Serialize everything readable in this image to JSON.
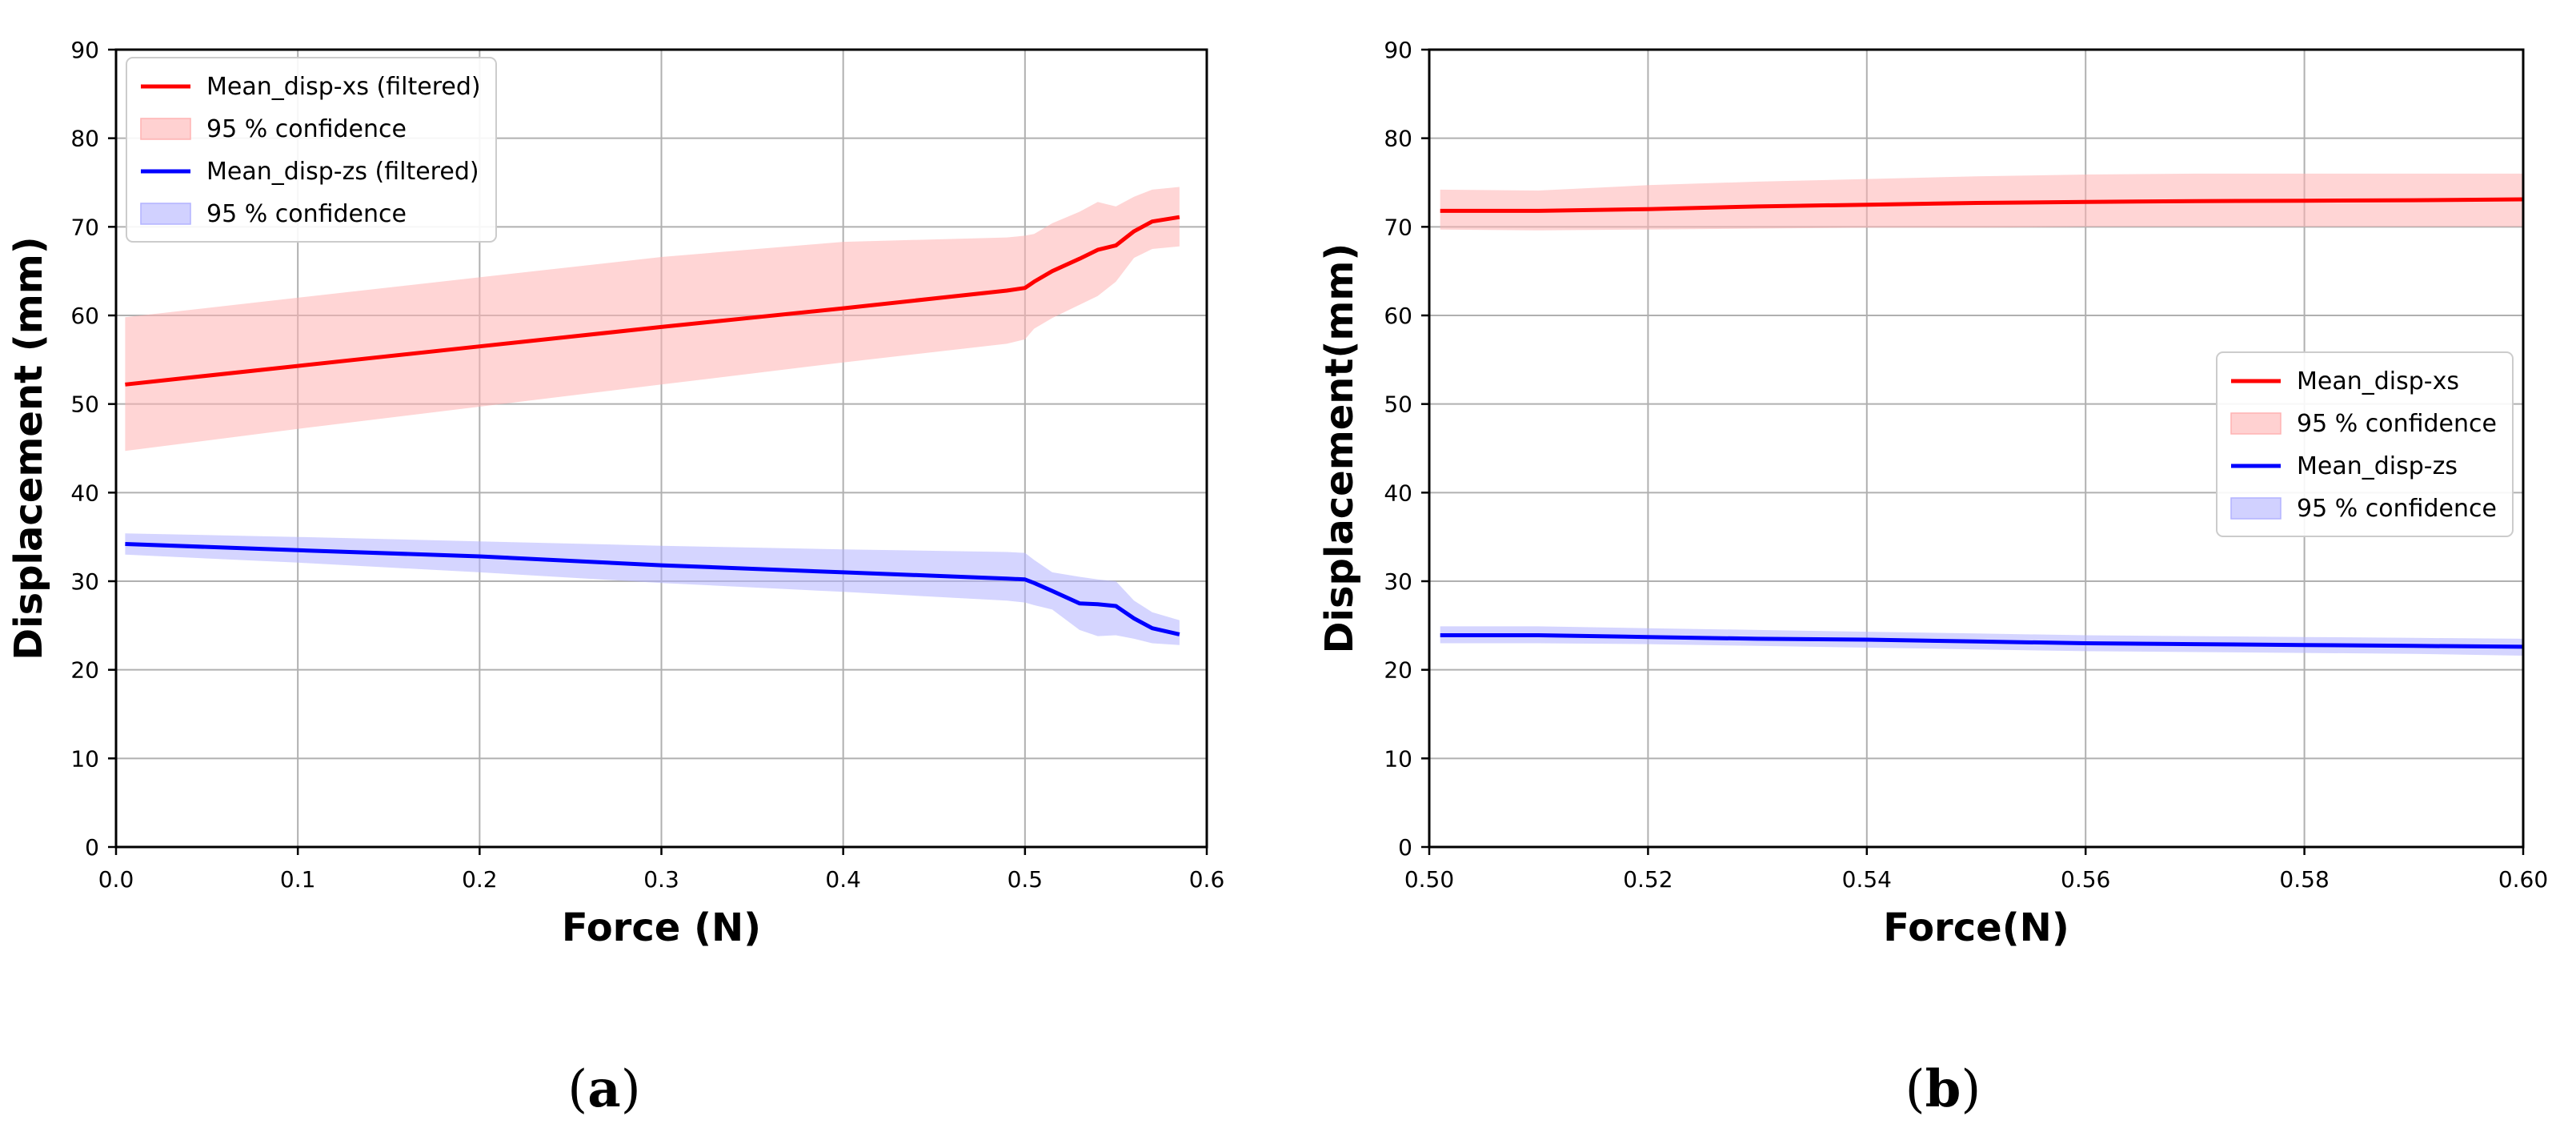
{
  "chart_data": [
    {
      "type": "line",
      "panel_label": "a",
      "xlabel": "Force (N)",
      "ylabel": "Displacement (mm)",
      "xlim": [
        0.0,
        0.6
      ],
      "ylim": [
        0,
        90
      ],
      "xticks": [
        "0.0",
        "0.1",
        "0.2",
        "0.3",
        "0.4",
        "0.5",
        "0.6"
      ],
      "yticks": [
        "0",
        "10",
        "20",
        "30",
        "40",
        "50",
        "60",
        "70",
        "80",
        "90"
      ],
      "grid": true,
      "legend_position": "top-left",
      "legend": [
        {
          "label": "Mean_disp-xs (filtered)",
          "kind": "line",
          "color": "#ff0000"
        },
        {
          "label": "95 % confidence",
          "kind": "band",
          "color": "#ffb3b3"
        },
        {
          "label": "Mean_disp-zs (filtered)",
          "kind": "line",
          "color": "#0000ff"
        },
        {
          "label": "95 % confidence",
          "kind": "band",
          "color": "#b3b3ff"
        }
      ],
      "series": [
        {
          "color": "#ff0000",
          "band_color": "#ffb3b3",
          "x": [
            0.005,
            0.1,
            0.2,
            0.3,
            0.4,
            0.49,
            0.5,
            0.505,
            0.515,
            0.53,
            0.54,
            0.55,
            0.56,
            0.57,
            0.585
          ],
          "mean": [
            52.2,
            54.3,
            56.5,
            58.7,
            60.8,
            62.8,
            63.1,
            63.8,
            65.0,
            66.4,
            67.4,
            67.9,
            69.5,
            70.6,
            71.1
          ],
          "lower": [
            44.7,
            47.2,
            49.7,
            52.2,
            54.7,
            56.8,
            57.3,
            58.5,
            59.7,
            61.2,
            62.2,
            63.8,
            66.5,
            67.5,
            67.8
          ],
          "upper": [
            59.8,
            62.0,
            64.3,
            66.6,
            68.3,
            68.8,
            69.0,
            69.2,
            70.4,
            71.7,
            72.8,
            72.3,
            73.4,
            74.2,
            74.5
          ]
        },
        {
          "color": "#0000ff",
          "band_color": "#b3b3ff",
          "x": [
            0.005,
            0.1,
            0.2,
            0.3,
            0.4,
            0.49,
            0.5,
            0.505,
            0.515,
            0.53,
            0.54,
            0.55,
            0.56,
            0.57,
            0.585
          ],
          "mean": [
            34.2,
            33.5,
            32.8,
            31.8,
            31.0,
            30.3,
            30.2,
            29.8,
            28.9,
            27.5,
            27.4,
            27.2,
            25.8,
            24.7,
            24.0
          ],
          "lower": [
            33.0,
            32.1,
            31.0,
            29.8,
            28.8,
            27.8,
            27.6,
            27.3,
            26.8,
            24.5,
            23.8,
            23.9,
            23.5,
            23.0,
            22.8
          ],
          "upper": [
            35.4,
            35.0,
            34.5,
            34.0,
            33.6,
            33.3,
            33.2,
            32.4,
            31.0,
            30.5,
            30.2,
            30.0,
            27.8,
            26.5,
            25.6
          ]
        }
      ]
    },
    {
      "type": "line",
      "panel_label": "b",
      "xlabel": "Force(N)",
      "ylabel": "Displacement(mm)",
      "xlim": [
        0.5,
        0.6
      ],
      "ylim": [
        0,
        90
      ],
      "xticks": [
        "0.50",
        "0.52",
        "0.54",
        "0.56",
        "0.58",
        "0.60"
      ],
      "yticks": [
        "0",
        "10",
        "20",
        "30",
        "40",
        "50",
        "60",
        "70",
        "80",
        "90"
      ],
      "grid": true,
      "legend_position": "center-right",
      "legend": [
        {
          "label": "Mean_disp-xs",
          "kind": "line",
          "color": "#ff0000"
        },
        {
          "label": "95 % confidence",
          "kind": "band",
          "color": "#ffb3b3"
        },
        {
          "label": "Mean_disp-zs",
          "kind": "line",
          "color": "#0000ff"
        },
        {
          "label": "95 % confidence",
          "kind": "band",
          "color": "#b3b3ff"
        }
      ],
      "series": [
        {
          "color": "#ff0000",
          "band_color": "#ffb3b3",
          "x": [
            0.501,
            0.51,
            0.52,
            0.53,
            0.54,
            0.55,
            0.56,
            0.57,
            0.58,
            0.59,
            0.6
          ],
          "mean": [
            71.8,
            71.8,
            72.0,
            72.3,
            72.5,
            72.7,
            72.8,
            72.9,
            72.95,
            73.0,
            73.1
          ],
          "lower": [
            69.7,
            69.6,
            69.7,
            69.8,
            69.9,
            69.9,
            70.0,
            70.0,
            70.0,
            70.0,
            70.0
          ],
          "upper": [
            74.2,
            74.1,
            74.7,
            75.1,
            75.4,
            75.7,
            75.9,
            76.0,
            76.0,
            76.0,
            76.0
          ]
        },
        {
          "color": "#0000ff",
          "band_color": "#b3b3ff",
          "x": [
            0.501,
            0.51,
            0.52,
            0.53,
            0.54,
            0.55,
            0.56,
            0.57,
            0.58,
            0.59,
            0.6
          ],
          "mean": [
            23.9,
            23.9,
            23.7,
            23.5,
            23.4,
            23.2,
            23.0,
            22.9,
            22.8,
            22.7,
            22.6
          ],
          "lower": [
            23.0,
            23.0,
            22.9,
            22.7,
            22.5,
            22.3,
            22.1,
            22.0,
            21.9,
            21.8,
            21.6
          ],
          "upper": [
            24.9,
            24.9,
            24.7,
            24.5,
            24.3,
            24.1,
            23.9,
            23.8,
            23.7,
            23.6,
            23.5
          ]
        }
      ]
    }
  ]
}
